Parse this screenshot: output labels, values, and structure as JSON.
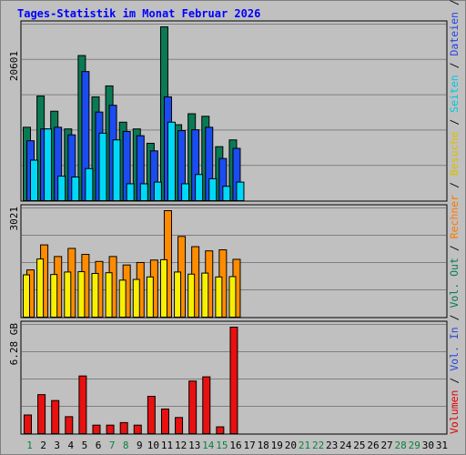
{
  "chart_data": {
    "type": "bar",
    "title": "Tages-Statistik im Monat Februar 2026",
    "categories": [
      "1",
      "2",
      "3",
      "4",
      "5",
      "6",
      "7",
      "8",
      "9",
      "10",
      "11",
      "12",
      "13",
      "14",
      "15",
      "16",
      "17",
      "18",
      "19",
      "20",
      "21",
      "22",
      "23",
      "24",
      "25",
      "26",
      "27",
      "28",
      "29",
      "30",
      "31"
    ],
    "weekend_days": [
      "1",
      "7",
      "8",
      "14",
      "15",
      "21",
      "22",
      "28",
      "29"
    ],
    "right_legend": [
      {
        "text": "Volumen",
        "color": "#e00000"
      },
      {
        "text": " / ",
        "color": "#000000"
      },
      {
        "text": "Vol. In",
        "color": "#2a45e0"
      },
      {
        "text": " / ",
        "color": "#000000"
      },
      {
        "text": "Vol. Out",
        "color": "#0a7a55"
      },
      {
        "text": " / ",
        "color": "#000000"
      },
      {
        "text": "Rechner",
        "color": "#ff7800"
      },
      {
        "text": " / ",
        "color": "#000000"
      },
      {
        "text": "Besuche",
        "color": "#d8c000"
      },
      {
        "text": " / ",
        "color": "#000000"
      },
      {
        "text": "Seiten",
        "color": "#00c8e0"
      },
      {
        "text": " / ",
        "color": "#000000"
      },
      {
        "text": "Dateien",
        "color": "#2a45e0"
      },
      {
        "text": " / ",
        "color": "#000000"
      },
      {
        "text": "Anfragen",
        "color": "#0a7a55"
      }
    ],
    "panels": [
      {
        "id": "hits",
        "ymax_label": "20601",
        "ylim": [
          0,
          20601
        ],
        "series": [
          {
            "name": "Anfragen",
            "color": "#0a7a55",
            "values": [
              8700,
              12400,
              10600,
              8500,
              17200,
              12300,
              13600,
              9300,
              8500,
              6800,
              20601,
              9000,
              10300,
              10000,
              6400,
              7200,
              0,
              0,
              0,
              0,
              0,
              0,
              0,
              0,
              0,
              0,
              0,
              0,
              0,
              0,
              0
            ]
          },
          {
            "name": "Dateien",
            "color": "#1a4cf0",
            "values": [
              7100,
              8500,
              8700,
              7800,
              15300,
              10500,
              11300,
              8200,
              7700,
              5900,
              12300,
              8300,
              8400,
              8700,
              5000,
              6200,
              0,
              0,
              0,
              0,
              0,
              0,
              0,
              0,
              0,
              0,
              0,
              0,
              0,
              0,
              0
            ]
          },
          {
            "name": "Seiten",
            "color": "#00d8f8",
            "values": [
              4800,
              8500,
              2900,
              2800,
              3800,
              8000,
              7200,
              2000,
              2000,
              2200,
              9300,
              2000,
              3100,
              2600,
              1700,
              2200,
              0,
              0,
              0,
              0,
              0,
              0,
              0,
              0,
              0,
              0,
              0,
              0,
              0,
              0,
              0
            ]
          }
        ]
      },
      {
        "id": "visits",
        "ymax_label": "3021",
        "ylim": [
          0,
          3021
        ],
        "series": [
          {
            "name": "Rechner",
            "color": "#ff8c00",
            "values": [
              1340,
              2050,
              1720,
              1950,
              1780,
              1580,
              1720,
              1480,
              1550,
              1620,
              3021,
              2290,
              2000,
              1880,
              1910,
              1640,
              0,
              0,
              0,
              0,
              0,
              0,
              0,
              0,
              0,
              0,
              0,
              0,
              0,
              0,
              0
            ]
          },
          {
            "name": "Besuche",
            "color": "#f8f000",
            "values": [
              1200,
              1650,
              1210,
              1280,
              1290,
              1240,
              1260,
              1050,
              1070,
              1140,
              1630,
              1280,
              1220,
              1250,
              1140,
              1150,
              0,
              0,
              0,
              0,
              0,
              0,
              0,
              0,
              0,
              0,
              0,
              0,
              0,
              0,
              0
            ]
          }
        ]
      },
      {
        "id": "volume",
        "ymax_label": "6.28 GB",
        "ylim": [
          0,
          6.28
        ],
        "series": [
          {
            "name": "Volumen",
            "color": "#e81010",
            "values": [
              1.1,
              2.3,
              1.95,
              1.0,
              3.4,
              0.5,
              0.5,
              0.65,
              0.5,
              2.2,
              1.45,
              0.95,
              3.1,
              3.35,
              0.4,
              6.28,
              0,
              0,
              0,
              0,
              0,
              0,
              0,
              0,
              0,
              0,
              0,
              0,
              0,
              0,
              0
            ]
          }
        ]
      }
    ],
    "grid": true
  }
}
